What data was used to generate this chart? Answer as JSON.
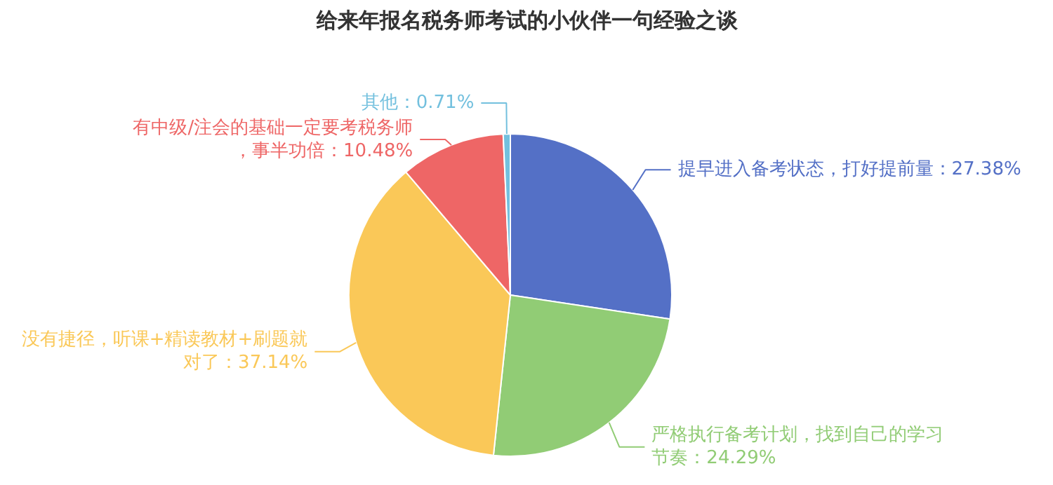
{
  "chart_data": {
    "type": "pie",
    "title": "给来年报名税务师考试的小伙伴一句经验之谈",
    "categories": [
      "提早进入备考状态，打好提前量",
      "严格执行备考计划，找到自己的学习节奏",
      "没有捷径，听课+精读教材+刷题就对了",
      "有中级/注会的基础一定要考税务师，事半功倍",
      "其他"
    ],
    "values": [
      27.38,
      24.29,
      37.14,
      10.48,
      0.71
    ],
    "colors": [
      "#5470c6",
      "#91cc75",
      "#fac858",
      "#ee6666",
      "#73c0de"
    ],
    "value_labels": [
      "27.38%",
      "24.29%",
      "37.14%",
      "10.48%",
      "0.71%"
    ]
  }
}
